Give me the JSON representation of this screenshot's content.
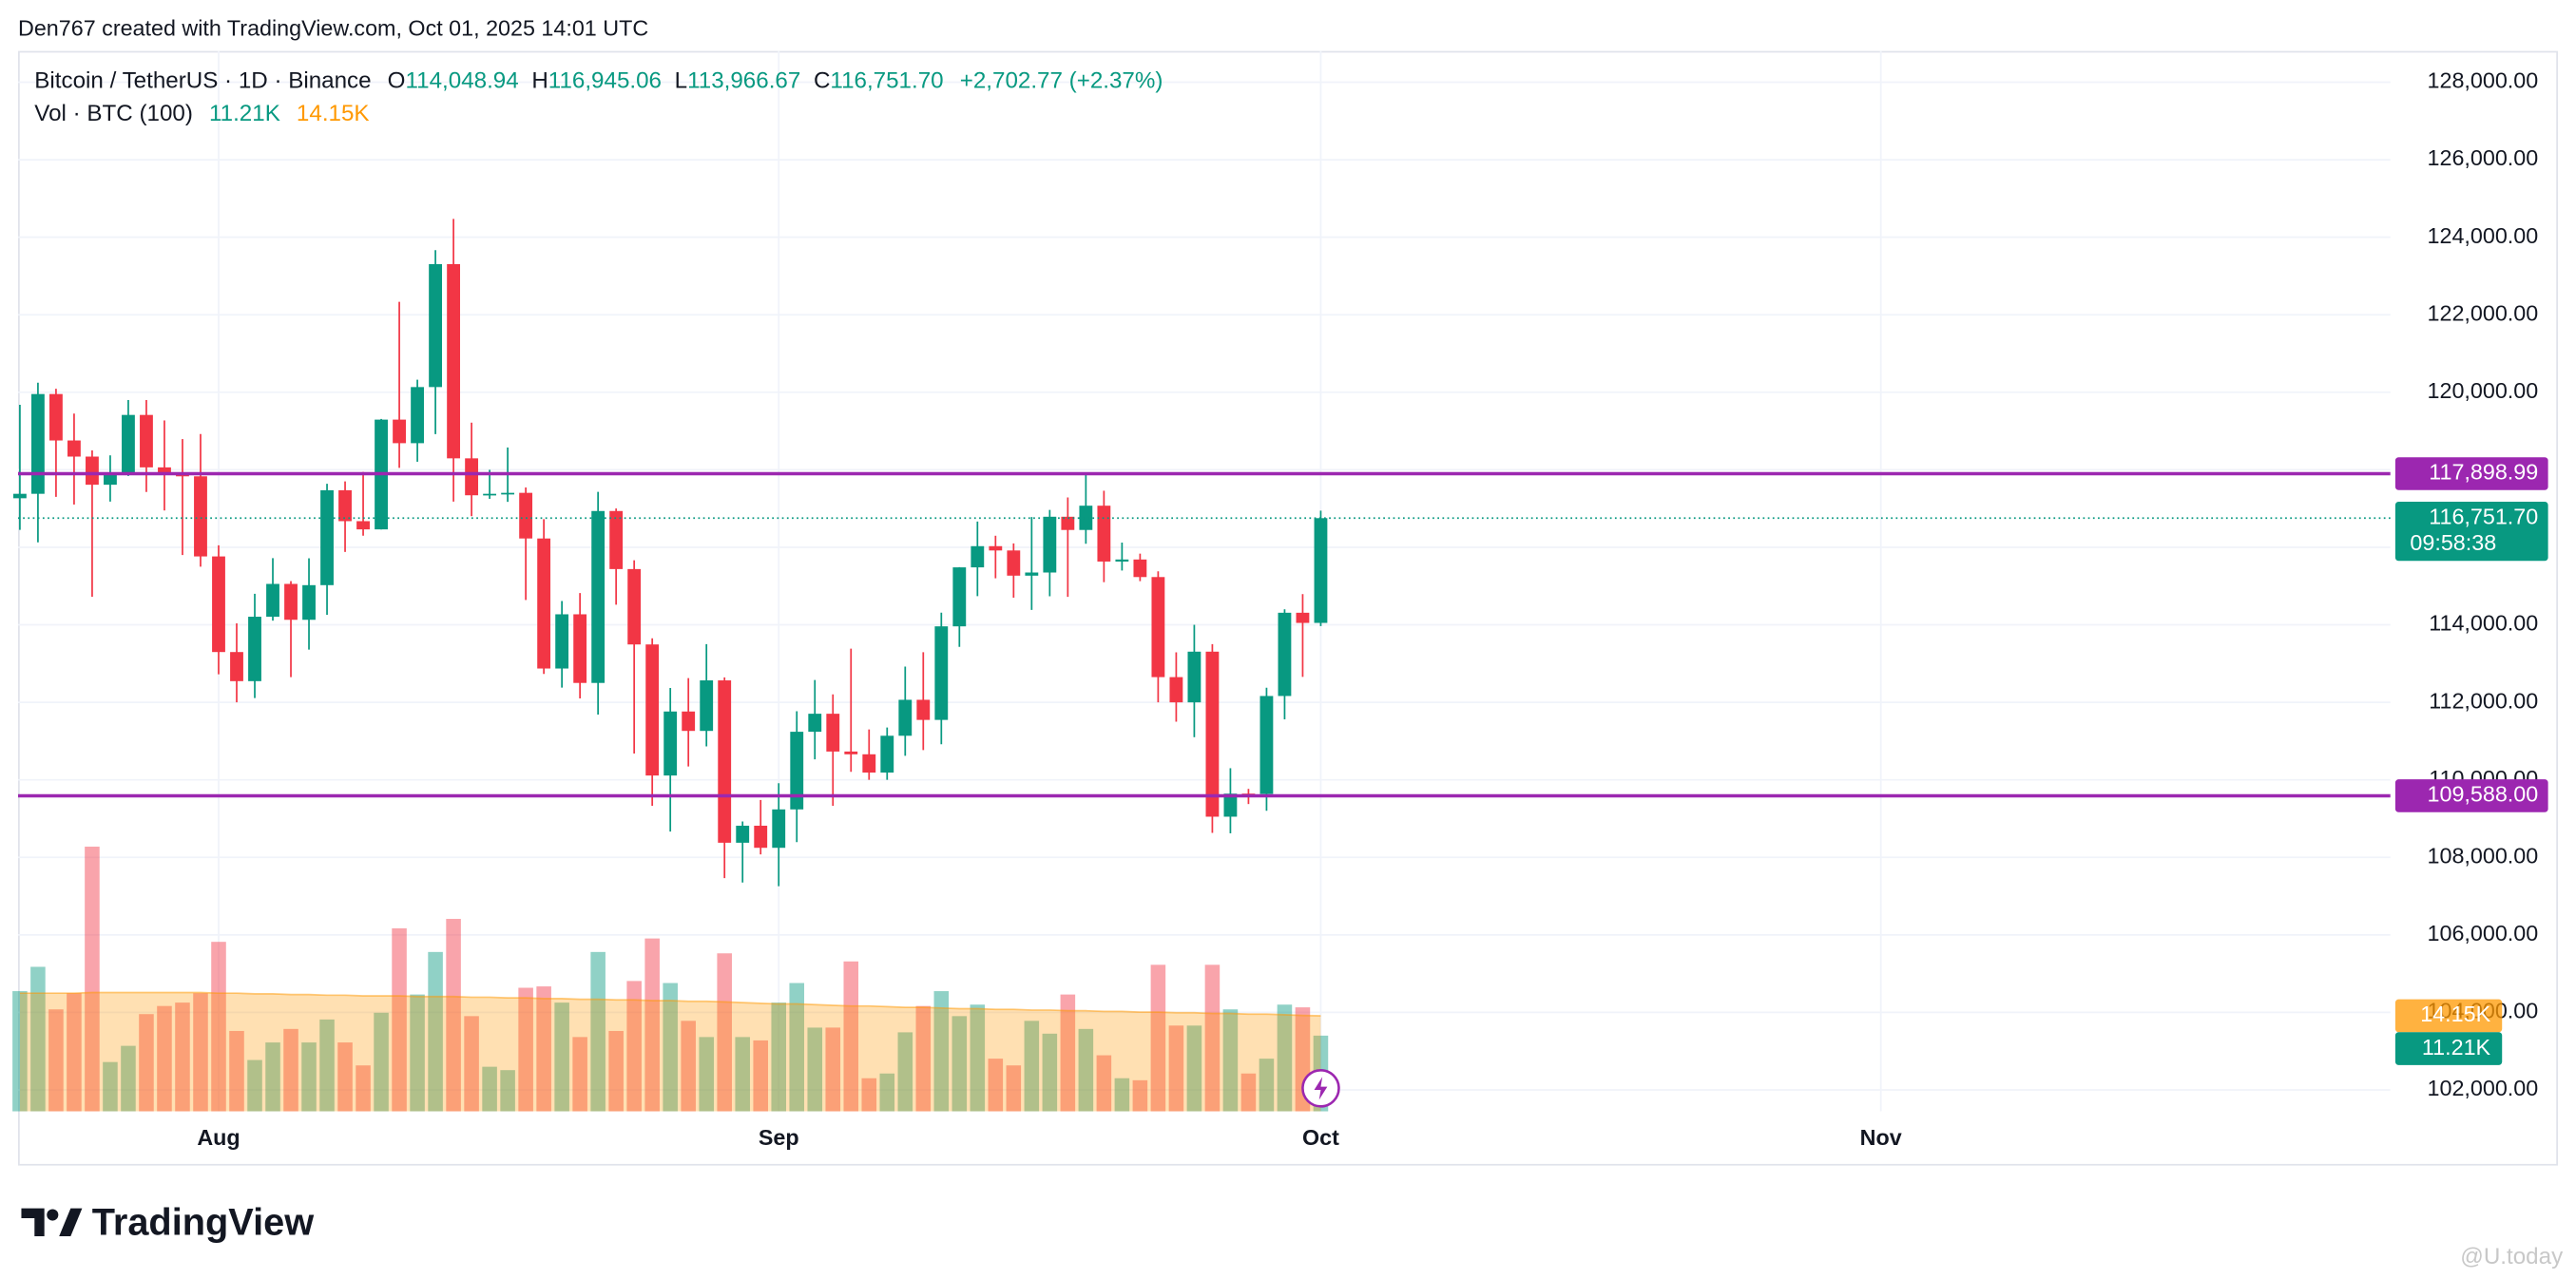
{
  "header": {
    "attribution": "Den767 created with TradingView.com, Oct 01, 2025 14:01 UTC"
  },
  "chart_data": {
    "type": "candlestick",
    "legend": {
      "symbol": "Bitcoin / TetherUS · 1D · Binance",
      "fields": [
        {
          "key": "O",
          "value": "114,048.94"
        },
        {
          "key": "H",
          "value": "116,945.06"
        },
        {
          "key": "L",
          "value": "113,966.67"
        },
        {
          "key": "C",
          "value": "116,751.70"
        }
      ],
      "change": "+2,702.77 (+2.37%)"
    },
    "open": [
      117265,
      117380,
      119954,
      118756,
      118340,
      117614,
      117919,
      119415,
      118062,
      117922,
      117831,
      115764,
      113297,
      112546,
      114208,
      115055,
      114129,
      115023,
      117472,
      116674,
      116462,
      119294,
      118686,
      120134,
      123306,
      118295,
      117342,
      117380,
      117405,
      116227,
      112872,
      114271,
      112500,
      116936,
      115438,
      113493,
      110111,
      111763,
      111262,
      112566,
      108377,
      108816,
      108246,
      109237,
      111240,
      111705,
      110730,
      110659,
      110187,
      111137,
      112065,
      111546,
      113960,
      115482,
      116029,
      115918,
      115268,
      115349,
      116788,
      116447,
      117073,
      115632,
      115685,
      115232,
      112650,
      111999,
      113307,
      109049,
      109644,
      109635,
      112163,
      114311,
      114048.94
    ],
    "high": [
      119676,
      120247,
      120090,
      119450,
      118500,
      118372,
      119800,
      119800,
      119273,
      118792,
      118922,
      116052,
      114037,
      114800,
      115720,
      115127,
      115716,
      117638,
      117700,
      117944,
      119311,
      122335,
      120324,
      123667,
      124474,
      119216,
      117999,
      118575,
      117543,
      116725,
      114615,
      114820,
      117429,
      117000,
      115666,
      113652,
      112371,
      112625,
      113500,
      112644,
      108926,
      109480,
      109912,
      111771,
      112575,
      112206,
      113384,
      111300,
      111350,
      112921,
      113293,
      114313,
      115488,
      116665,
      116298,
      116100,
      116781,
      116964,
      117286,
      117900,
      117459,
      116121,
      115836,
      115379,
      113290,
      114000,
      113500,
      110300,
      109767,
      112375,
      114400,
      114792,
      116945.06
    ],
    "low": [
      116450,
      116128,
      117301,
      117103,
      114723,
      117179,
      117840,
      117427,
      116950,
      115800,
      115500,
      112722,
      112000,
      112110,
      114107,
      112650,
      113360,
      114259,
      115880,
      116299,
      116460,
      118050,
      118207,
      118920,
      117180,
      116803,
      117250,
      117172,
      114640,
      112732,
      112380,
      112100,
      111684,
      114518,
      110680,
      109329,
      108666,
      110345,
      110862,
      107463,
      107350,
      108076,
      107255,
      108393,
      110528,
      109329,
      110206,
      110000,
      110000,
      110621,
      110766,
      110917,
      113430,
      114740,
      115200,
      114700,
      114384,
      114737,
      114720,
      116092,
      115100,
      115400,
      115126,
      112000,
      111500,
      111100,
      108631,
      108620,
      109375,
      109200,
      111560,
      112656,
      113966.67
    ],
    "close": [
      117380,
      119954,
      118756,
      118340,
      117614,
      117919,
      119415,
      118062,
      117922,
      117831,
      115764,
      113297,
      112546,
      114208,
      115055,
      114129,
      115023,
      117472,
      116674,
      116462,
      119294,
      118686,
      120134,
      123306,
      118295,
      117342,
      117380,
      117405,
      116227,
      112872,
      114271,
      112500,
      116936,
      115438,
      113493,
      110111,
      111763,
      111262,
      112566,
      108377,
      108816,
      108246,
      109237,
      111240,
      111705,
      110730,
      110659,
      110187,
      111137,
      112065,
      111546,
      113960,
      115482,
      116029,
      115918,
      115268,
      115349,
      116788,
      116447,
      117073,
      115632,
      115685,
      115232,
      112650,
      111999,
      113307,
      109049,
      109644,
      109635,
      112163,
      114311,
      114048.94,
      116751.7
    ],
    "up_color": "#089981",
    "down_color": "#f23645",
    "xlim": [
      -0.1,
      131.2
    ],
    "xticks": [
      {
        "value": 11,
        "label": "Aug"
      },
      {
        "value": 42,
        "label": "Sep"
      },
      {
        "value": 72,
        "label": "Oct"
      },
      {
        "value": 103,
        "label": "Nov"
      }
    ],
    "ylim": [
      101447,
      128806
    ],
    "yticks": [
      {
        "value": 102000,
        "label": "102,000.00"
      },
      {
        "value": 104000,
        "label": "104,000.00"
      },
      {
        "value": 106000,
        "label": "106,000.00"
      },
      {
        "value": 108000,
        "label": "108,000.00"
      },
      {
        "value": 110000,
        "label": "110,000.00"
      },
      {
        "value": 112000,
        "label": "112,000.00"
      },
      {
        "value": 114000,
        "label": "114,000.00"
      },
      {
        "value": 116000,
        "label": "116,000.00"
      },
      {
        "value": 118000,
        "label": "118,000.00"
      },
      {
        "value": 120000,
        "label": "120,000.00"
      },
      {
        "value": 122000,
        "label": "122,000.00"
      },
      {
        "value": 124000,
        "label": "124,000.00"
      },
      {
        "value": 126000,
        "label": "126,000.00"
      },
      {
        "value": 128000,
        "label": "128,000.00"
      }
    ],
    "grid": true,
    "last_price": {
      "label": "116,751.70",
      "countdown": "09:58:38"
    },
    "hlines": [
      {
        "value": 117898.99,
        "label": "117,898.99",
        "color": "#9c27b0"
      },
      {
        "value": 109588.0,
        "label": "109,588.00",
        "color": "#9c27b0"
      }
    ],
    "volume": {
      "title": "Vol · BTC (100)",
      "values": [
        17.8,
        21.4,
        15.1,
        17.5,
        39.2,
        7.3,
        9.7,
        14.4,
        15.6,
        16.1,
        17.5,
        25.1,
        11.9,
        7.6,
        10.2,
        12.2,
        10.2,
        13.6,
        10.2,
        6.8,
        14.6,
        27.1,
        17.3,
        23.6,
        28.5,
        14.1,
        6.6,
        6.1,
        18.3,
        18.5,
        16.1,
        11.0,
        23.6,
        11.9,
        19.3,
        25.6,
        19.0,
        13.4,
        11.0,
        23.4,
        11.0,
        10.5,
        16.1,
        19.0,
        12.4,
        12.4,
        22.2,
        4.9,
        5.6,
        11.7,
        15.6,
        17.8,
        14.1,
        15.8,
        7.8,
        6.8,
        13.4,
        11.5,
        17.3,
        12.2,
        8.3,
        4.9,
        4.6,
        21.7,
        12.7,
        12.7,
        21.7,
        15.1,
        5.6,
        7.8,
        15.8,
        15.4,
        11.21
      ],
      "last_label": "11.21K",
      "ma": [
        17.5,
        17.5,
        17.5,
        17.5,
        17.6,
        17.6,
        17.6,
        17.6,
        17.6,
        17.6,
        17.6,
        17.5,
        17.5,
        17.4,
        17.4,
        17.3,
        17.3,
        17.2,
        17.2,
        17.1,
        17.1,
        17.1,
        17.0,
        17.0,
        17.0,
        16.9,
        16.9,
        16.8,
        16.8,
        16.7,
        16.7,
        16.6,
        16.6,
        16.5,
        16.5,
        16.4,
        16.4,
        16.3,
        16.3,
        16.2,
        16.1,
        16.0,
        15.9,
        15.9,
        15.8,
        15.7,
        15.6,
        15.6,
        15.5,
        15.4,
        15.4,
        15.3,
        15.2,
        15.2,
        15.1,
        15.1,
        15.0,
        15.0,
        14.9,
        14.9,
        14.8,
        14.8,
        14.7,
        14.7,
        14.6,
        14.6,
        14.5,
        14.5,
        14.4,
        14.4,
        14.3,
        14.2,
        14.15
      ],
      "ma_label": "14.15K",
      "ma_color": "#ff9800"
    }
  },
  "footer": {
    "brand": "TradingView",
    "watermark": "@U.today"
  }
}
